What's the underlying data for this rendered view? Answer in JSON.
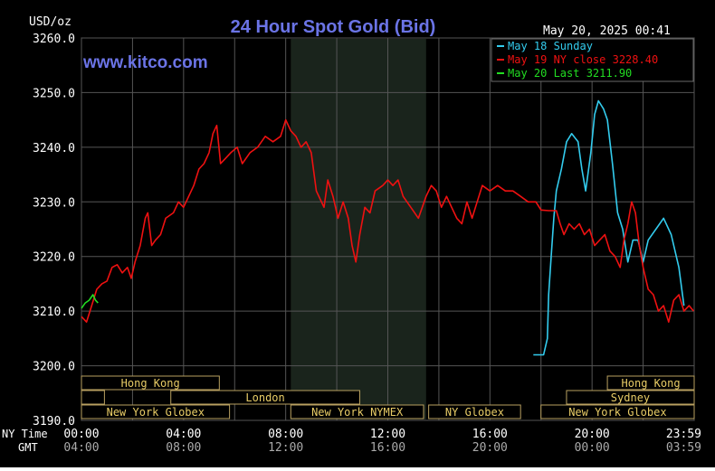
{
  "chart_data": {
    "type": "line",
    "title": "24 Hour Spot Gold (Bid)",
    "website": "www.kitco.com",
    "timestamp": "May 20, 2025 00:41",
    "ylabel": "USD/oz",
    "ylim": [
      3190,
      3260
    ],
    "y_ticks": [
      "3190.0",
      "3200.0",
      "3210.0",
      "3220.0",
      "3230.0",
      "3240.0",
      "3250.0",
      "3260.0"
    ],
    "x_range_hours": [
      0,
      24
    ],
    "x_ticks": [
      {
        "ny": "00:00",
        "gmt": "04:00"
      },
      {
        "ny": "04:00",
        "gmt": "08:00"
      },
      {
        "ny": "08:00",
        "gmt": "12:00"
      },
      {
        "ny": "12:00",
        "gmt": "16:00"
      },
      {
        "ny": "16:00",
        "gmt": "20:00"
      },
      {
        "ny": "20:00",
        "gmt": "00:00"
      },
      {
        "ny": "23:59",
        "gmt": "03:59"
      }
    ],
    "x_row_labels": {
      "ny": "NY Time",
      "gmt": "GMT"
    },
    "grid": true,
    "legend_position": "top-right",
    "nymex_shade_hours": [
      8.2,
      13.5
    ],
    "series": [
      {
        "name": "May 18 Sunday",
        "color": "#33ccee",
        "points": [
          [
            17.7,
            3202.0
          ],
          [
            18.1,
            3202.0
          ],
          [
            18.25,
            3205.0
          ],
          [
            18.3,
            3213.0
          ],
          [
            18.4,
            3220.0
          ],
          [
            18.5,
            3227.0
          ],
          [
            18.6,
            3232.0
          ],
          [
            18.8,
            3236.0
          ],
          [
            19.0,
            3241.0
          ],
          [
            19.2,
            3242.5
          ],
          [
            19.45,
            3241.0
          ],
          [
            19.6,
            3236.0
          ],
          [
            19.75,
            3232.0
          ],
          [
            19.95,
            3239.0
          ],
          [
            20.1,
            3246.0
          ],
          [
            20.25,
            3248.5
          ],
          [
            20.45,
            3247.0
          ],
          [
            20.6,
            3245.0
          ],
          [
            20.8,
            3237.0
          ],
          [
            21.0,
            3228.0
          ],
          [
            21.2,
            3225.0
          ],
          [
            21.4,
            3219.0
          ],
          [
            21.6,
            3223.0
          ],
          [
            21.8,
            3223.0
          ],
          [
            22.0,
            3219.0
          ],
          [
            22.2,
            3223.0
          ],
          [
            22.5,
            3225.0
          ],
          [
            22.8,
            3227.0
          ],
          [
            23.1,
            3224.0
          ],
          [
            23.4,
            3218.0
          ],
          [
            23.6,
            3211.0
          ]
        ]
      },
      {
        "name": "May 19 NY close 3228.40",
        "color": "#ee1111",
        "points": [
          [
            0.0,
            3209.0
          ],
          [
            0.2,
            3208.0
          ],
          [
            0.4,
            3211.0
          ],
          [
            0.6,
            3214.0
          ],
          [
            0.8,
            3215.0
          ],
          [
            1.0,
            3215.5
          ],
          [
            1.2,
            3218.0
          ],
          [
            1.4,
            3218.5
          ],
          [
            1.6,
            3217.0
          ],
          [
            1.8,
            3218.0
          ],
          [
            1.95,
            3216.0
          ],
          [
            2.1,
            3219.0
          ],
          [
            2.3,
            3222.0
          ],
          [
            2.5,
            3227.0
          ],
          [
            2.6,
            3228.0
          ],
          [
            2.75,
            3222.0
          ],
          [
            2.9,
            3223.0
          ],
          [
            3.1,
            3224.0
          ],
          [
            3.3,
            3227.0
          ],
          [
            3.6,
            3228.0
          ],
          [
            3.8,
            3230.0
          ],
          [
            4.0,
            3229.0
          ],
          [
            4.2,
            3231.0
          ],
          [
            4.4,
            3233.0
          ],
          [
            4.6,
            3236.0
          ],
          [
            4.8,
            3237.0
          ],
          [
            5.0,
            3239.0
          ],
          [
            5.15,
            3242.5
          ],
          [
            5.3,
            3244.0
          ],
          [
            5.45,
            3237.0
          ],
          [
            5.65,
            3238.0
          ],
          [
            5.85,
            3239.0
          ],
          [
            6.1,
            3240.0
          ],
          [
            6.3,
            3237.0
          ],
          [
            6.6,
            3239.0
          ],
          [
            6.9,
            3240.0
          ],
          [
            7.2,
            3242.0
          ],
          [
            7.5,
            3241.0
          ],
          [
            7.8,
            3242.0
          ],
          [
            8.0,
            3245.0
          ],
          [
            8.2,
            3243.0
          ],
          [
            8.4,
            3242.0
          ],
          [
            8.6,
            3240.0
          ],
          [
            8.8,
            3241.0
          ],
          [
            9.0,
            3239.0
          ],
          [
            9.2,
            3232.0
          ],
          [
            9.4,
            3230.0
          ],
          [
            9.5,
            3229.0
          ],
          [
            9.65,
            3234.0
          ],
          [
            9.85,
            3231.0
          ],
          [
            10.05,
            3227.0
          ],
          [
            10.25,
            3230.0
          ],
          [
            10.45,
            3227.0
          ],
          [
            10.6,
            3222.0
          ],
          [
            10.75,
            3219.0
          ],
          [
            10.9,
            3224.0
          ],
          [
            11.1,
            3229.0
          ],
          [
            11.3,
            3228.0
          ],
          [
            11.5,
            3232.0
          ],
          [
            11.8,
            3233.0
          ],
          [
            12.0,
            3234.0
          ],
          [
            12.2,
            3233.0
          ],
          [
            12.4,
            3234.0
          ],
          [
            12.6,
            3231.0
          ],
          [
            12.9,
            3229.0
          ],
          [
            13.2,
            3227.0
          ],
          [
            13.5,
            3231.0
          ],
          [
            13.7,
            3233.0
          ],
          [
            13.9,
            3232.0
          ],
          [
            14.1,
            3229.0
          ],
          [
            14.3,
            3231.0
          ],
          [
            14.5,
            3229.0
          ],
          [
            14.7,
            3227.0
          ],
          [
            14.9,
            3226.0
          ],
          [
            15.1,
            3230.0
          ],
          [
            15.3,
            3227.0
          ],
          [
            15.5,
            3230.0
          ],
          [
            15.7,
            3233.0
          ],
          [
            16.0,
            3232.0
          ],
          [
            16.3,
            3233.0
          ],
          [
            16.6,
            3232.0
          ],
          [
            16.9,
            3232.0
          ],
          [
            17.2,
            3231.0
          ],
          [
            17.5,
            3230.0
          ],
          [
            17.8,
            3230.0
          ],
          [
            18.0,
            3228.5
          ],
          [
            18.3,
            3228.4
          ],
          [
            18.6,
            3228.4
          ],
          [
            18.75,
            3226.0
          ],
          [
            18.9,
            3224.0
          ],
          [
            19.1,
            3226.0
          ],
          [
            19.3,
            3225.0
          ],
          [
            19.5,
            3226.0
          ],
          [
            19.7,
            3224.0
          ],
          [
            19.9,
            3225.0
          ],
          [
            20.1,
            3222.0
          ],
          [
            20.3,
            3223.0
          ],
          [
            20.5,
            3224.0
          ],
          [
            20.7,
            3221.0
          ],
          [
            20.9,
            3220.0
          ],
          [
            21.1,
            3218.0
          ],
          [
            21.25,
            3223.0
          ],
          [
            21.4,
            3226.0
          ],
          [
            21.55,
            3230.0
          ],
          [
            21.7,
            3228.0
          ],
          [
            21.85,
            3222.0
          ],
          [
            22.0,
            3218.0
          ],
          [
            22.2,
            3214.0
          ],
          [
            22.4,
            3213.0
          ],
          [
            22.6,
            3210.0
          ],
          [
            22.8,
            3211.0
          ],
          [
            23.0,
            3208.0
          ],
          [
            23.2,
            3212.0
          ],
          [
            23.4,
            3213.0
          ],
          [
            23.6,
            3210.0
          ],
          [
            23.8,
            3211.0
          ],
          [
            23.98,
            3210.0
          ]
        ]
      },
      {
        "name": "May 20 Last 3211.90",
        "color": "#22dd22",
        "points": [
          [
            0.0,
            3210.5
          ],
          [
            0.15,
            3211.5
          ],
          [
            0.3,
            3212.0
          ],
          [
            0.45,
            3213.0
          ],
          [
            0.55,
            3212.0
          ],
          [
            0.65,
            3211.5
          ]
        ]
      }
    ],
    "session_rows": [
      [
        {
          "label": "Hong Kong",
          "start": 0.0,
          "end": 5.4
        },
        {
          "label": "Hong Kong",
          "start": 20.6,
          "end": 24.0
        }
      ],
      [
        {
          "label": "",
          "start": 0.0,
          "end": 0.9
        },
        {
          "label": "London",
          "start": 3.5,
          "end": 10.9
        },
        {
          "label": "Sydney",
          "start": 19.0,
          "end": 24.0
        }
      ],
      [
        {
          "label": "New York Globex",
          "start": 0.0,
          "end": 5.8
        },
        {
          "label": "New York NYMEX",
          "start": 8.2,
          "end": 13.4
        },
        {
          "label": "NY Globex",
          "start": 13.6,
          "end": 17.2
        },
        {
          "label": "New York Globex",
          "start": 18.0,
          "end": 24.0
        }
      ]
    ]
  }
}
